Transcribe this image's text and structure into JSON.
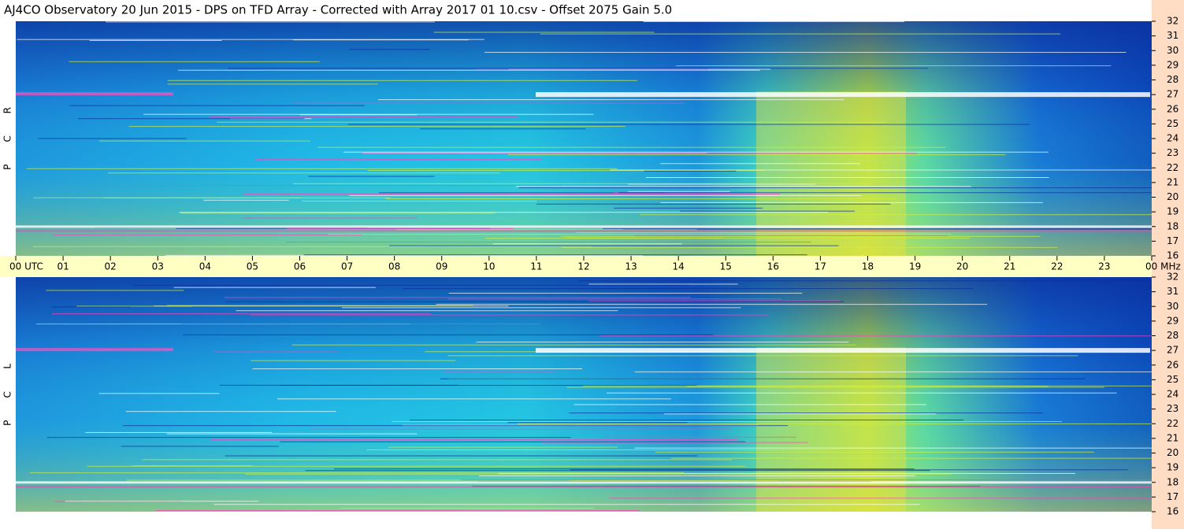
{
  "title": "AJ4CO Observatory  20 Jun 2015  -  DPS on TFD Array  -  Corrected with Array 2017 01 10.csv  -  Offset 2075  Gain 5.0",
  "time_axis": {
    "labels": [
      "00 UTC",
      "01",
      "02",
      "03",
      "04",
      "05",
      "06",
      "07",
      "08",
      "09",
      "10",
      "11",
      "12",
      "13",
      "14",
      "15",
      "16",
      "17",
      "18",
      "19",
      "20",
      "21",
      "22",
      "23",
      "00 MHz"
    ]
  },
  "panels": [
    {
      "label": [
        "R",
        "C",
        "P"
      ],
      "freq_labels": [
        32,
        31,
        30,
        29,
        28,
        27,
        26,
        25,
        24,
        23,
        22,
        21,
        20,
        19,
        18,
        17,
        16
      ]
    },
    {
      "label": [
        "L",
        "C",
        "P"
      ],
      "freq_labels": [
        32,
        31,
        30,
        29,
        28,
        27,
        26,
        25,
        24,
        23,
        22,
        21,
        20,
        19,
        18,
        17,
        16
      ]
    }
  ]
}
